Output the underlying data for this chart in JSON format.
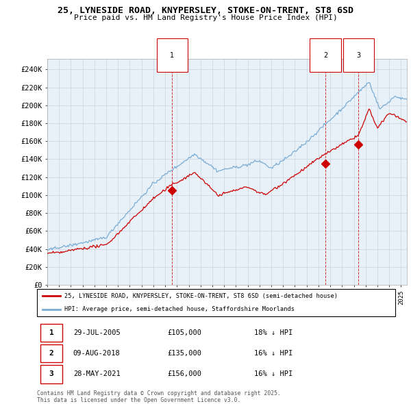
{
  "title": "25, LYNESIDE ROAD, KNYPERSLEY, STOKE-ON-TRENT, ST8 6SD",
  "subtitle": "Price paid vs. HM Land Registry's House Price Index (HPI)",
  "ylabel_ticks": [
    "£0",
    "£20K",
    "£40K",
    "£60K",
    "£80K",
    "£100K",
    "£120K",
    "£140K",
    "£160K",
    "£180K",
    "£200K",
    "£220K",
    "£240K"
  ],
  "ylim": [
    0,
    252000
  ],
  "xlim_start": 1995.0,
  "xlim_end": 2025.5,
  "legend_line1": "25, LYNESIDE ROAD, KNYPERSLEY, STOKE-ON-TRENT, ST8 6SD (semi-detached house)",
  "legend_line2": "HPI: Average price, semi-detached house, Staffordshire Moorlands",
  "sale1_label": "1",
  "sale1_date": "29-JUL-2005",
  "sale1_price": "£105,000",
  "sale1_hpi": "18% ↓ HPI",
  "sale2_label": "2",
  "sale2_date": "09-AUG-2018",
  "sale2_price": "£135,000",
  "sale2_hpi": "16% ↓ HPI",
  "sale3_label": "3",
  "sale3_date": "28-MAY-2021",
  "sale3_price": "£156,000",
  "sale3_hpi": "16% ↓ HPI",
  "footnote": "Contains HM Land Registry data © Crown copyright and database right 2025.\nThis data is licensed under the Open Government Licence v3.0.",
  "red_color": "#cc0000",
  "blue_color": "#7aadd4",
  "chart_bg": "#e8f0f8",
  "background_color": "#ffffff",
  "grid_color": "#c8d4e0",
  "marker1_x": 2005.58,
  "marker1_y": 105000,
  "marker2_x": 2018.59,
  "marker2_y": 135000,
  "marker3_x": 2021.4,
  "marker3_y": 156000
}
